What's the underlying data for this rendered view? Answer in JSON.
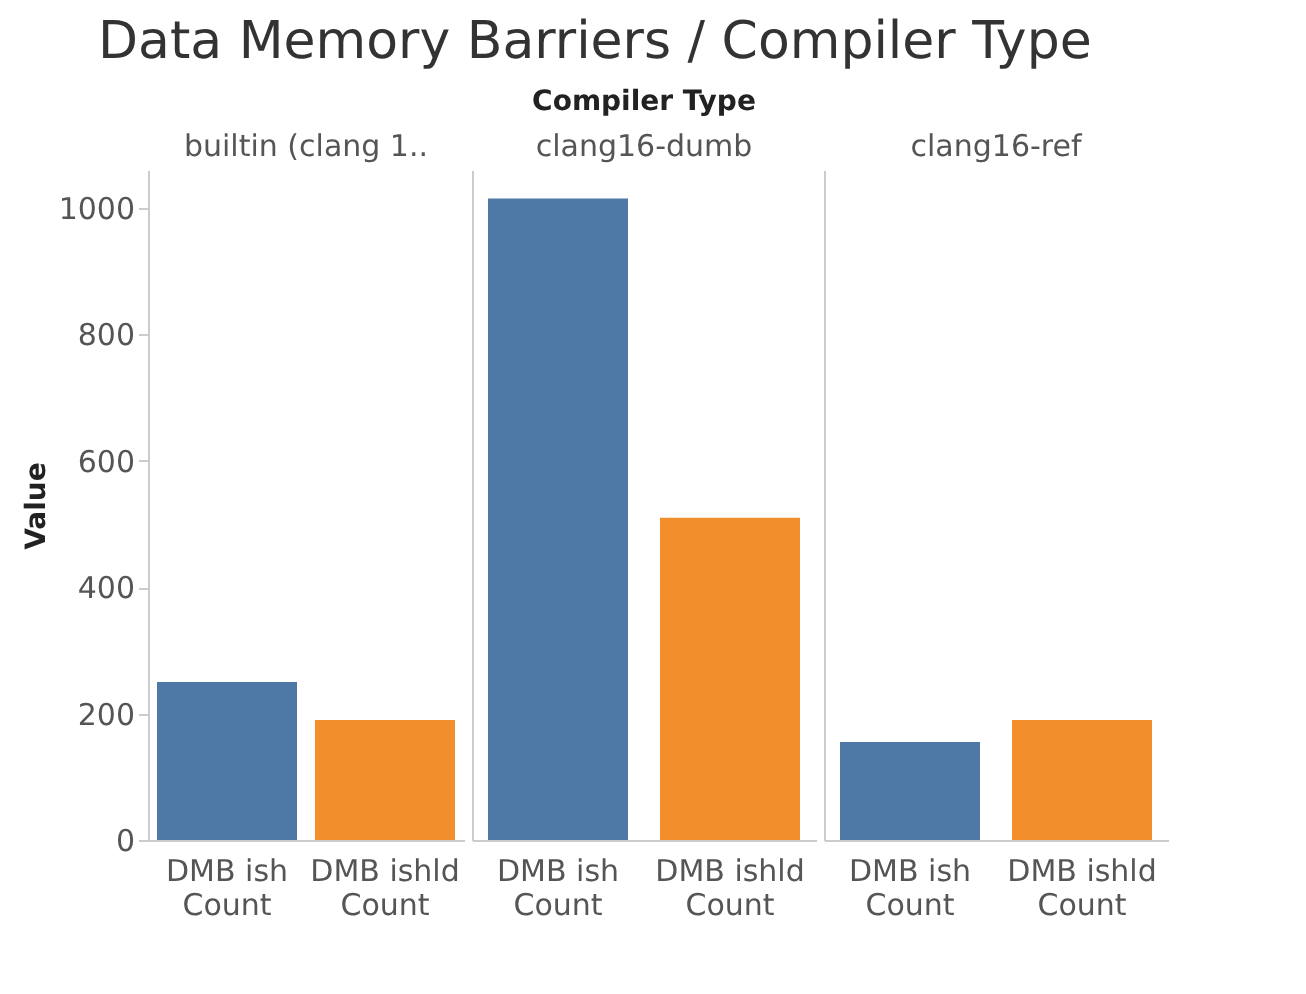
{
  "chart_data": [
    {
      "type": "bar",
      "title": "Data Memory Barriers / Compiler Type",
      "xlabel": "builtin (clang 1..",
      "ylabel": "Value",
      "categories": [
        "DMB ish Count",
        "DMB ishld Count"
      ],
      "values": [
        250,
        190
      ],
      "colors": [
        "#4e79a7",
        "#f28e2b"
      ],
      "ylim": [
        0,
        1060
      ],
      "yticks": [
        0,
        200,
        400,
        600,
        800,
        1000
      ]
    },
    {
      "type": "bar",
      "subtitle": "Compiler Type",
      "xlabel": "clang16-dumb",
      "categories": [
        "DMB ish Count",
        "DMB ishld Count"
      ],
      "values": [
        1015,
        510
      ],
      "colors": [
        "#4e79a7",
        "#f28e2b"
      ],
      "ylim": [
        0,
        1060
      ],
      "yticks": [
        0,
        200,
        400,
        600,
        800,
        1000
      ],
      "tick_labels": "x"
    },
    {
      "type": "bar",
      "xlabel": "clang16-ref",
      "categories": [
        "DMB ish Count",
        "DMB ishld Count"
      ],
      "values": [
        155,
        190
      ],
      "colors": [
        "#4e79a7",
        "#f28e2b"
      ],
      "ylim": [
        0,
        1060
      ],
      "yticks": [
        0,
        200,
        400,
        600,
        800,
        1000
      ],
      "tick_labels": "x"
    }
  ]
}
